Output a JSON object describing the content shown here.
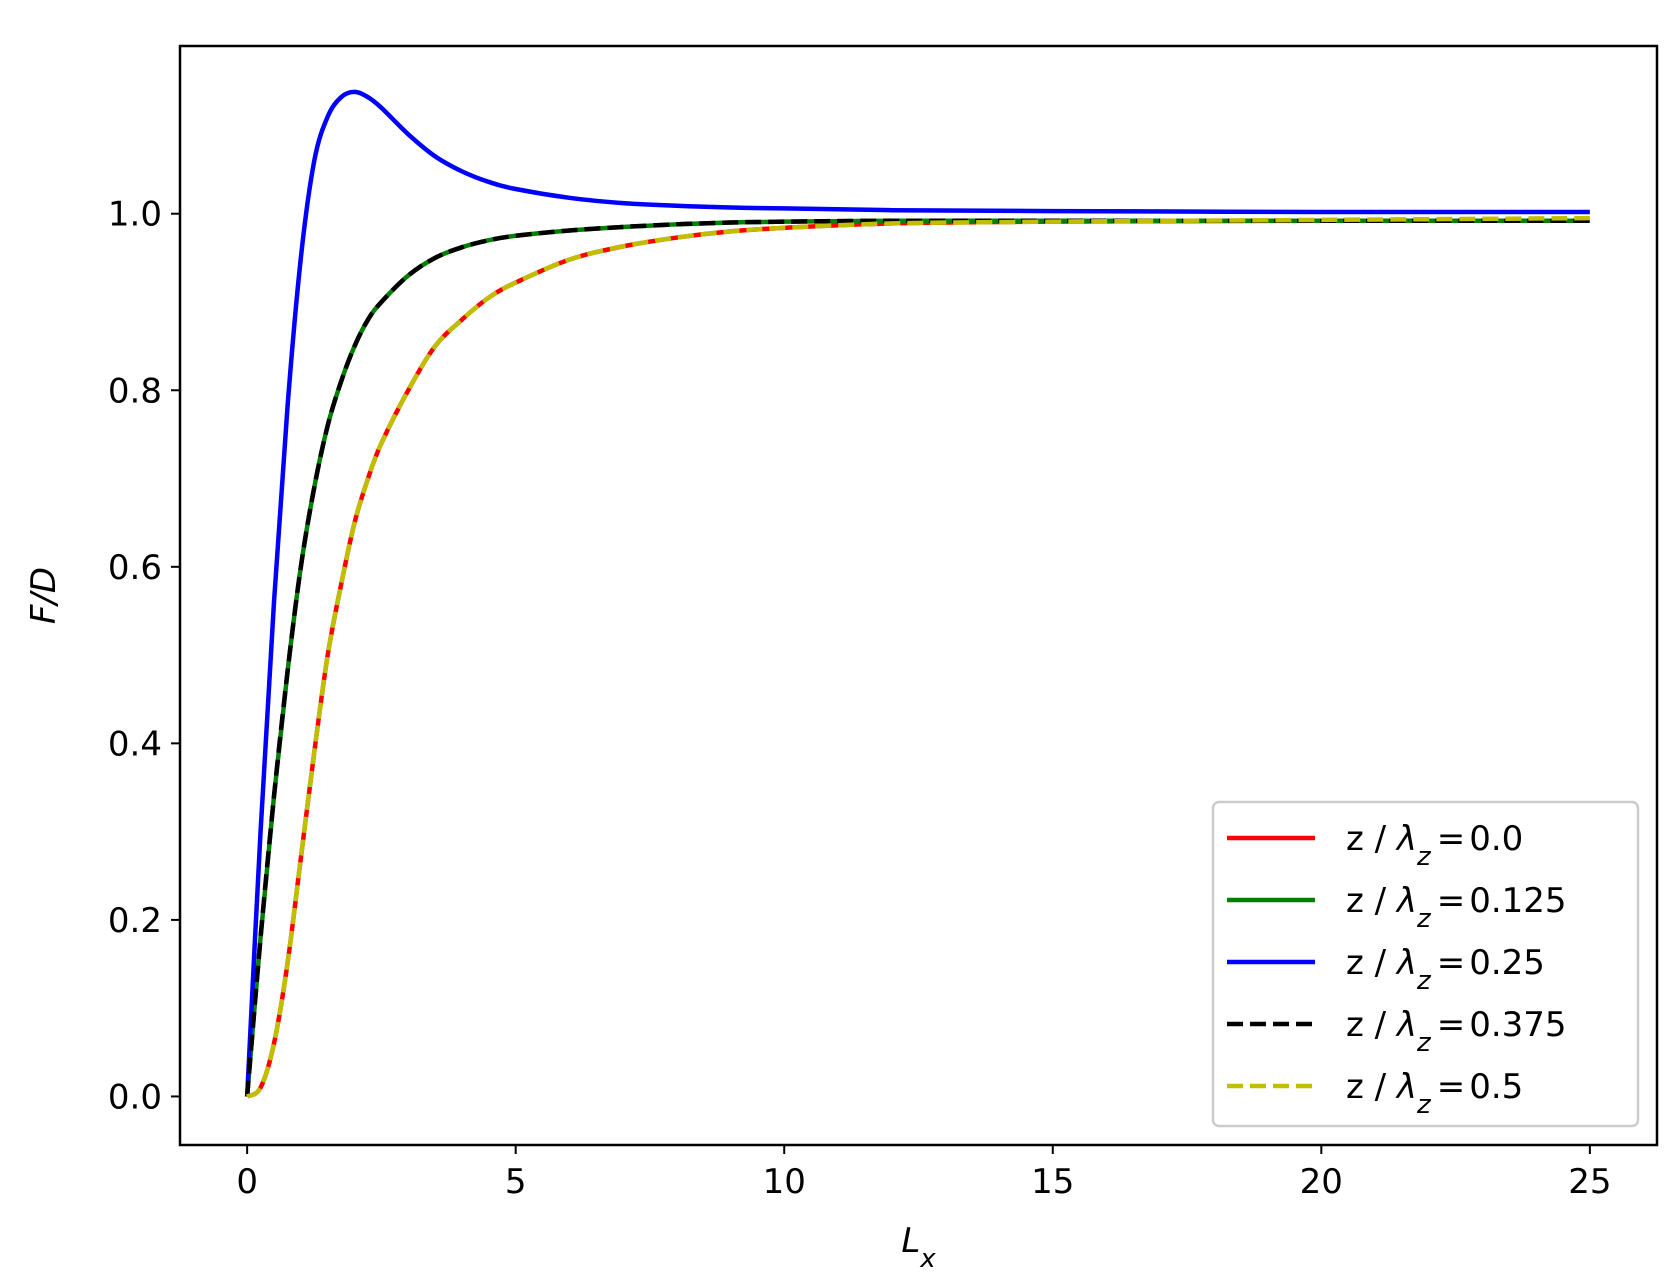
{
  "chart_data": {
    "type": "line",
    "title": "",
    "xlabel": {
      "base": "L",
      "sub": "x"
    },
    "ylabel": "F/D",
    "xlim": [
      -1.25,
      26.25
    ],
    "ylim": [
      -0.055,
      1.19
    ],
    "xticks": [
      0,
      5,
      10,
      15,
      20,
      25
    ],
    "xtick_labels": [
      "0",
      "5",
      "10",
      "15",
      "20",
      "25"
    ],
    "yticks": [
      0.0,
      0.2,
      0.4,
      0.6,
      0.8,
      1.0
    ],
    "ytick_labels": [
      "0.0",
      "0.2",
      "0.4",
      "0.6",
      "0.8",
      "1.0"
    ],
    "grid": false,
    "legend_position": "lower-right",
    "legend_prefix": "z / ",
    "legend_symbol": "λ",
    "legend_symbol_sub": "z",
    "x": [
      0,
      0.25,
      0.5,
      0.75,
      1,
      1.25,
      1.5,
      1.75,
      2,
      2.25,
      2.5,
      3,
      3.5,
      4,
      4.5,
      5,
      6,
      7,
      8,
      9,
      10,
      12,
      15,
      20,
      25
    ],
    "series": [
      {
        "name": "0.0",
        "color": "#ff0000",
        "dash": "solid",
        "values": [
          0.0,
          0.01,
          0.06,
          0.15,
          0.27,
          0.39,
          0.5,
          0.58,
          0.65,
          0.7,
          0.74,
          0.8,
          0.85,
          0.88,
          0.905,
          0.922,
          0.948,
          0.963,
          0.973,
          0.98,
          0.984,
          0.989,
          0.991,
          0.992,
          0.992
        ]
      },
      {
        "name": "0.125",
        "color": "#008000",
        "dash": "solid",
        "values": [
          0.0,
          0.18,
          0.34,
          0.48,
          0.6,
          0.69,
          0.76,
          0.81,
          0.85,
          0.88,
          0.9,
          0.93,
          0.95,
          0.962,
          0.97,
          0.975,
          0.981,
          0.985,
          0.988,
          0.99,
          0.991,
          0.992,
          0.992,
          0.992,
          0.992
        ]
      },
      {
        "name": "0.25",
        "color": "#0000ff",
        "dash": "solid",
        "values": [
          0.0,
          0.3,
          0.56,
          0.78,
          0.95,
          1.06,
          1.11,
          1.132,
          1.138,
          1.132,
          1.12,
          1.09,
          1.065,
          1.048,
          1.036,
          1.028,
          1.018,
          1.012,
          1.009,
          1.007,
          1.006,
          1.004,
          1.003,
          1.002,
          1.002
        ]
      },
      {
        "name": "0.375",
        "color": "#000000",
        "dash": "dashed",
        "values": [
          0.0,
          0.18,
          0.34,
          0.48,
          0.6,
          0.69,
          0.76,
          0.81,
          0.85,
          0.88,
          0.9,
          0.93,
          0.95,
          0.962,
          0.97,
          0.975,
          0.981,
          0.985,
          0.988,
          0.99,
          0.991,
          0.992,
          0.992,
          0.992,
          0.992
        ]
      },
      {
        "name": "0.5",
        "color": "#bfbf00",
        "dash": "dashed",
        "values": [
          0.0,
          0.01,
          0.06,
          0.15,
          0.27,
          0.39,
          0.5,
          0.58,
          0.65,
          0.7,
          0.74,
          0.8,
          0.85,
          0.88,
          0.905,
          0.922,
          0.948,
          0.963,
          0.973,
          0.98,
          0.984,
          0.989,
          0.991,
          0.993,
          0.995
        ]
      }
    ]
  }
}
